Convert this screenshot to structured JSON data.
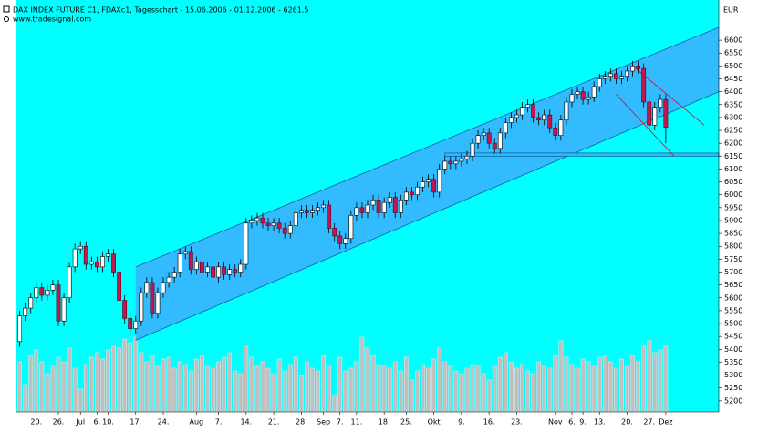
{
  "chart_data": {
    "type": "candlestick",
    "title": "DAX INDEX FUTURE C1, FDAXc1, Tagesschart - 15.06.2006 - 01.12.2006 - 6261.5",
    "subtitle": "www.tradesignal.com",
    "y_unit": "EUR",
    "categories": [
      null,
      null,
      null,
      "20.",
      null,
      null,
      null,
      "26.",
      null,
      null,
      null,
      "Jul",
      null,
      null,
      "6.",
      null,
      "10.",
      null,
      null,
      null,
      null,
      "17.",
      null,
      null,
      null,
      null,
      "24.",
      null,
      null,
      null,
      null,
      null,
      "Aug",
      null,
      null,
      null,
      "7.",
      null,
      null,
      null,
      null,
      "14.",
      null,
      null,
      null,
      null,
      "21.",
      null,
      null,
      null,
      null,
      "28.",
      null,
      null,
      null,
      "Sep",
      null,
      null,
      "7.",
      null,
      null,
      "11.",
      null,
      null,
      null,
      null,
      "18.",
      null,
      null,
      null,
      "25.",
      null,
      null,
      null,
      null,
      "Okt",
      null,
      null,
      null,
      null,
      "9.",
      null,
      null,
      null,
      null,
      "16.",
      null,
      null,
      null,
      null,
      "23.",
      null,
      null,
      null,
      null,
      null,
      null,
      "Nov",
      null,
      null,
      "6.",
      null,
      "9.",
      null,
      null,
      "13.",
      null,
      null,
      null,
      null,
      "20.",
      null,
      null,
      null,
      "27.",
      null,
      null,
      "Dez"
    ],
    "open": [
      5430,
      5530,
      5560,
      5600,
      5640,
      5610,
      5630,
      5650,
      5510,
      5600,
      5720,
      5790,
      5800,
      5730,
      5740,
      5720,
      5760,
      5770,
      5700,
      5590,
      5520,
      5480,
      5510,
      5620,
      5660,
      5540,
      5620,
      5660,
      5680,
      5700,
      5770,
      5780,
      5710,
      5740,
      5700,
      5720,
      5680,
      5720,
      5690,
      5710,
      5700,
      5730,
      5890,
      5900,
      5910,
      5890,
      5880,
      5890,
      5870,
      5850,
      5880,
      5930,
      5940,
      5930,
      5940,
      5950,
      5960,
      5870,
      5840,
      5810,
      5830,
      5920,
      5950,
      5930,
      5960,
      5980,
      5930,
      5970,
      5990,
      5930,
      5980,
      6010,
      6000,
      6030,
      6050,
      6060,
      6010,
      6100,
      6130,
      6120,
      6130,
      6140,
      6150,
      6200,
      6230,
      6240,
      6200,
      6180,
      6240,
      6280,
      6300,
      6310,
      6340,
      6350,
      6300,
      6290,
      6310,
      6260,
      6230,
      6290,
      6360,
      6390,
      6400,
      6370,
      6380,
      6420,
      6450,
      6460,
      6470,
      6450,
      6460,
      6480,
      6500,
      6490,
      6360,
      6270,
      6340,
      6370
    ],
    "high": [
      5550,
      5580,
      5620,
      5660,
      5660,
      5650,
      5670,
      5670,
      5620,
      5740,
      5810,
      5820,
      5820,
      5760,
      5760,
      5780,
      5790,
      5790,
      5720,
      5610,
      5540,
      5530,
      5640,
      5680,
      5680,
      5640,
      5680,
      5700,
      5720,
      5790,
      5800,
      5800,
      5760,
      5760,
      5740,
      5740,
      5740,
      5740,
      5730,
      5730,
      5750,
      5910,
      5920,
      5930,
      5930,
      5910,
      5910,
      5910,
      5890,
      5900,
      5950,
      5960,
      5960,
      5960,
      5970,
      5980,
      5980,
      5890,
      5860,
      5850,
      5940,
      5970,
      5970,
      5980,
      6000,
      6000,
      5990,
      6010,
      6010,
      6000,
      6030,
      6030,
      6050,
      6070,
      6080,
      6080,
      6120,
      6150,
      6150,
      6150,
      6160,
      6170,
      6220,
      6250,
      6260,
      6260,
      6220,
      6260,
      6300,
      6320,
      6330,
      6360,
      6370,
      6370,
      6320,
      6330,
      6330,
      6280,
      6310,
      6380,
      6410,
      6420,
      6420,
      6400,
      6440,
      6470,
      6480,
      6490,
      6490,
      6480,
      6500,
      6520,
      6520,
      6510,
      6380,
      6360,
      6390,
      6390
    ],
    "low": [
      5410,
      5510,
      5540,
      5580,
      5590,
      5590,
      5610,
      5490,
      5490,
      5580,
      5700,
      5770,
      5710,
      5710,
      5700,
      5700,
      5740,
      5680,
      5570,
      5500,
      5460,
      5460,
      5490,
      5600,
      5520,
      5520,
      5600,
      5640,
      5660,
      5680,
      5750,
      5690,
      5690,
      5680,
      5680,
      5660,
      5660,
      5670,
      5670,
      5680,
      5680,
      5710,
      5870,
      5880,
      5870,
      5860,
      5860,
      5850,
      5830,
      5830,
      5860,
      5910,
      5910,
      5910,
      5920,
      5930,
      5850,
      5820,
      5790,
      5790,
      5810,
      5900,
      5910,
      5910,
      5940,
      5910,
      5910,
      5950,
      5910,
      5910,
      5960,
      5980,
      5980,
      6010,
      6030,
      5990,
      5990,
      6080,
      6100,
      6100,
      6110,
      6120,
      6130,
      6180,
      6210,
      6180,
      6160,
      6160,
      6220,
      6260,
      6280,
      6290,
      6320,
      6280,
      6270,
      6270,
      6240,
      6210,
      6210,
      6270,
      6340,
      6370,
      6350,
      6350,
      6360,
      6400,
      6430,
      6440,
      6430,
      6430,
      6440,
      6460,
      6470,
      6340,
      6250,
      6250,
      6320,
      6200
    ],
    "close": [
      5530,
      5560,
      5600,
      5640,
      5610,
      5630,
      5650,
      5510,
      5600,
      5720,
      5790,
      5800,
      5730,
      5740,
      5720,
      5760,
      5770,
      5700,
      5590,
      5520,
      5480,
      5510,
      5620,
      5660,
      5540,
      5620,
      5660,
      5680,
      5700,
      5770,
      5780,
      5710,
      5740,
      5700,
      5720,
      5680,
      5720,
      5690,
      5710,
      5700,
      5730,
      5890,
      5900,
      5910,
      5890,
      5880,
      5890,
      5870,
      5850,
      5880,
      5930,
      5940,
      5930,
      5940,
      5950,
      5960,
      5870,
      5840,
      5810,
      5830,
      5920,
      5950,
      5930,
      5960,
      5980,
      5930,
      5970,
      5990,
      5930,
      5980,
      6010,
      6000,
      6030,
      6050,
      6060,
      6010,
      6100,
      6130,
      6120,
      6130,
      6140,
      6150,
      6200,
      6230,
      6240,
      6200,
      6180,
      6240,
      6280,
      6300,
      6310,
      6340,
      6350,
      6300,
      6290,
      6310,
      6260,
      6230,
      6290,
      6360,
      6390,
      6400,
      6370,
      6380,
      6420,
      6450,
      6460,
      6470,
      6450,
      6460,
      6480,
      6500,
      6490,
      6360,
      6270,
      6340,
      6370,
      6261.5
    ],
    "volume": [
      55,
      30,
      62,
      68,
      55,
      42,
      50,
      60,
      55,
      70,
      48,
      25,
      52,
      60,
      65,
      58,
      68,
      72,
      70,
      80,
      76,
      82,
      65,
      55,
      62,
      50,
      58,
      60,
      48,
      55,
      52,
      45,
      58,
      62,
      50,
      48,
      55,
      60,
      65,
      45,
      42,
      72,
      60,
      50,
      55,
      48,
      42,
      58,
      45,
      52,
      60,
      40,
      55,
      48,
      45,
      62,
      50,
      18,
      60,
      45,
      48,
      55,
      82,
      70,
      62,
      52,
      50,
      48,
      55,
      45,
      60,
      35,
      45,
      52,
      48,
      58,
      70,
      55,
      50,
      45,
      42,
      48,
      52,
      50,
      42,
      35,
      50,
      60,
      65,
      55,
      48,
      52,
      45,
      42,
      55,
      50,
      48,
      62,
      78,
      60,
      52,
      48,
      58,
      55,
      50,
      60,
      62,
      55,
      48,
      58,
      50,
      62,
      55,
      72,
      78,
      65,
      68,
      72
    ],
    "up_color": "#ffffff",
    "down_color": "#c0184a",
    "volume_color": "#c0c0c0",
    "background": "#00ffff",
    "channel_color": "#33bbff",
    "channel": {
      "x": [
        21,
        126.6
      ],
      "upper": [
        5720,
        6650
      ],
      "lower": [
        5435,
        6400
      ]
    },
    "support_band": {
      "x": [
        77,
        126.6
      ],
      "values": [
        6150,
        6162
      ]
    },
    "trendlines": [
      {
        "x": [
          111,
          124
        ],
        "values": [
          6500,
          6270
        ],
        "color": "#c02040"
      },
      {
        "x": [
          108,
          118.5
        ],
        "values": [
          6390,
          6150
        ],
        "color": "#c02040"
      }
    ],
    "xlim": [
      -0.6,
      126.6
    ],
    "ylim": [
      5157,
      6756
    ],
    "yticks": [
      5200,
      5250,
      5300,
      5350,
      5400,
      5450,
      5500,
      5550,
      5600,
      5650,
      5700,
      5750,
      5800,
      5850,
      5900,
      5950,
      6000,
      6050,
      6100,
      6150,
      6200,
      6250,
      6300,
      6350,
      6400,
      6450,
      6500,
      6550,
      6600
    ]
  }
}
